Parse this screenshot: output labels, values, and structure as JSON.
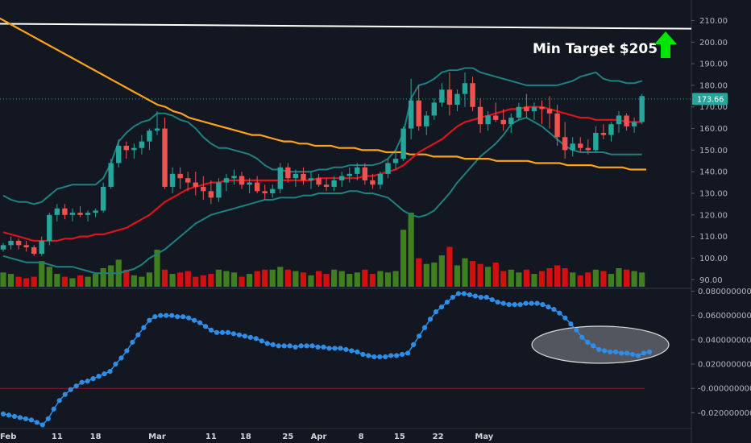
{
  "annotation": {
    "text": "Min Target $205",
    "arrow_color": "#00e600"
  },
  "colors": {
    "up": "#26a69a",
    "down": "#ef5350",
    "vol_up": "#3f7f1e",
    "vol_down": "#d40f0f",
    "bb": "#1f8080",
    "ma_red": "#e0121b",
    "ma_orange": "#ffa31a",
    "resistance": "#ffffff",
    "indicator": "#2e8de6",
    "zero_line": "#8b1d1d",
    "ellipse": "#d0d0d0"
  },
  "chart_data": {
    "type": "candlestick",
    "price_axis": {
      "range": [
        86,
        218
      ],
      "ticks": [
        "210.00",
        "200.00",
        "190.00",
        "180.00",
        "170.00",
        "160.00",
        "150.00",
        "140.00",
        "130.00",
        "120.00",
        "110.00",
        "100.00",
        "90.00"
      ],
      "current_price": "173.66"
    },
    "indicator_axis": {
      "range": [
        -0.033,
        0.081
      ],
      "ticks": [
        "0.0800000000",
        "0.0600000000",
        "0.0400000000",
        "0.0200000000",
        "-0.0000000000",
        "-0.0200000000"
      ]
    },
    "time_axis": {
      "labels": [
        {
          "label": "Feb",
          "i": -0.5
        },
        {
          "label": "11",
          "i": 7
        },
        {
          "label": "18",
          "i": 12
        },
        {
          "label": "Mar",
          "i": 20
        },
        {
          "label": "11",
          "i": 27
        },
        {
          "label": "18",
          "i": 31.5
        },
        {
          "label": "25",
          "i": 37
        },
        {
          "label": "Apr",
          "i": 41
        },
        {
          "label": "8",
          "i": 46.5
        },
        {
          "label": "15",
          "i": 51.5
        },
        {
          "label": "22",
          "i": 56.5
        },
        {
          "label": "May",
          "i": 62.5
        }
      ]
    },
    "resistance_line": {
      "from_price": 208.5,
      "to_price": 206.2
    },
    "candles": [
      [
        104,
        107,
        103,
        106
      ],
      [
        106,
        110,
        104,
        108
      ],
      [
        108,
        109,
        104,
        106
      ],
      [
        106,
        108,
        103,
        105
      ],
      [
        105,
        106,
        101,
        102
      ],
      [
        102,
        110,
        101,
        108
      ],
      [
        108,
        121,
        106,
        120
      ],
      [
        120,
        125,
        117,
        123
      ],
      [
        123,
        125,
        118,
        120
      ],
      [
        120,
        123,
        117,
        121
      ],
      [
        121,
        124,
        119,
        120
      ],
      [
        120,
        122,
        117,
        121
      ],
      [
        121,
        123,
        119,
        122
      ],
      [
        122,
        135,
        121,
        133
      ],
      [
        133,
        146,
        132,
        144
      ],
      [
        144,
        155,
        142,
        152
      ],
      [
        152,
        154,
        146,
        150
      ],
      [
        150,
        153,
        146,
        151
      ],
      [
        151,
        157,
        148,
        154
      ],
      [
        154,
        160,
        150,
        159
      ],
      [
        159,
        168,
        157,
        160
      ],
      [
        160,
        165,
        132,
        133
      ],
      [
        133,
        142,
        130,
        139
      ],
      [
        139,
        142,
        132,
        137
      ],
      [
        137,
        140,
        131,
        135
      ],
      [
        135,
        140,
        129,
        133
      ],
      [
        133,
        138,
        127,
        131
      ],
      [
        131,
        136,
        125,
        128
      ],
      [
        128,
        137,
        126,
        135
      ],
      [
        135,
        139,
        131,
        137
      ],
      [
        137,
        141,
        134,
        138
      ],
      [
        138,
        140,
        132,
        134
      ],
      [
        134,
        137,
        130,
        135
      ],
      [
        135,
        138,
        130,
        131
      ],
      [
        131,
        134,
        127,
        130
      ],
      [
        130,
        134,
        128,
        132
      ],
      [
        132,
        144,
        130,
        142
      ],
      [
        142,
        144,
        135,
        137
      ],
      [
        137,
        141,
        133,
        139
      ],
      [
        139,
        142,
        134,
        136
      ],
      [
        136,
        140,
        132,
        137
      ],
      [
        137,
        139,
        133,
        134
      ],
      [
        134,
        137,
        131,
        133
      ],
      [
        133,
        138,
        131,
        136
      ],
      [
        136,
        140,
        133,
        138
      ],
      [
        138,
        142,
        135,
        139
      ],
      [
        139,
        144,
        136,
        142
      ],
      [
        142,
        144,
        134,
        136
      ],
      [
        136,
        139,
        132,
        134
      ],
      [
        134,
        140,
        132,
        139
      ],
      [
        139,
        146,
        137,
        144
      ],
      [
        144,
        150,
        141,
        146
      ],
      [
        146,
        161,
        145,
        160
      ],
      [
        160,
        183,
        155,
        173
      ],
      [
        173,
        180,
        159,
        161
      ],
      [
        161,
        168,
        157,
        166
      ],
      [
        166,
        174,
        164,
        172
      ],
      [
        172,
        181,
        170,
        178
      ],
      [
        178,
        186,
        166,
        171
      ],
      [
        171,
        178,
        168,
        176
      ],
      [
        176,
        186,
        170,
        181
      ],
      [
        181,
        184,
        168,
        170
      ],
      [
        170,
        174,
        158,
        162
      ],
      [
        162,
        168,
        159,
        166
      ],
      [
        166,
        172,
        163,
        164
      ],
      [
        164,
        169,
        159,
        162
      ],
      [
        162,
        167,
        158,
        165
      ],
      [
        165,
        172,
        164,
        170
      ],
      [
        170,
        176,
        165,
        168
      ],
      [
        168,
        172,
        164,
        170
      ],
      [
        170,
        173,
        162,
        169
      ],
      [
        169,
        175,
        160,
        167
      ],
      [
        167,
        171,
        152,
        156
      ],
      [
        156,
        163,
        146,
        150
      ],
      [
        150,
        156,
        147,
        153
      ],
      [
        153,
        156,
        149,
        151
      ],
      [
        151,
        155,
        148,
        150
      ],
      [
        150,
        161,
        149,
        158
      ],
      [
        158,
        162,
        155,
        157
      ],
      [
        157,
        163,
        154,
        162
      ],
      [
        162,
        168,
        158,
        166
      ],
      [
        166,
        167,
        159,
        161
      ],
      [
        161,
        165,
        158,
        163
      ],
      [
        163,
        176,
        162,
        175
      ]
    ],
    "volume": [
      10,
      9,
      7,
      6,
      7,
      18,
      14,
      9,
      7,
      6,
      8,
      7,
      9,
      13,
      15,
      19,
      12,
      8,
      7,
      10,
      26,
      12,
      9,
      10,
      11,
      7,
      8,
      9,
      12,
      11,
      10,
      7,
      9,
      11,
      12,
      12,
      14,
      12,
      11,
      10,
      8,
      11,
      9,
      12,
      11,
      9,
      10,
      12,
      9,
      11,
      10,
      11,
      40,
      52,
      20,
      16,
      17,
      22,
      28,
      15,
      20,
      18,
      16,
      14,
      17,
      11,
      12,
      10,
      12,
      9,
      11,
      13,
      15,
      13,
      10,
      8,
      10,
      12,
      11,
      9,
      13,
      12,
      11,
      10
    ],
    "bollinger_upper": [
      129,
      127,
      126,
      126,
      125,
      126,
      129,
      132,
      133,
      134,
      134,
      134,
      134,
      137,
      144,
      154,
      158,
      161,
      163,
      164,
      167,
      167,
      166,
      164,
      163,
      160,
      156,
      153,
      151,
      151,
      150,
      149,
      148,
      146,
      143,
      141,
      141,
      140,
      140,
      140,
      140,
      141,
      141,
      142,
      142,
      143,
      143,
      143,
      143,
      144,
      146,
      150,
      158,
      174,
      180,
      181,
      183,
      186,
      187,
      187,
      188,
      188,
      186,
      185,
      184,
      183,
      182,
      181,
      180,
      180,
      180,
      180,
      180,
      181,
      182,
      184,
      185,
      186,
      183,
      182,
      182,
      181,
      181,
      182
    ],
    "bollinger_lower": [
      101,
      100,
      99,
      98,
      98,
      98,
      97,
      96,
      96,
      96,
      95,
      94,
      93,
      93,
      93,
      93,
      94,
      95,
      97,
      100,
      102,
      104,
      107,
      110,
      113,
      116,
      118,
      120,
      121,
      122,
      123,
      124,
      125,
      126,
      127,
      127,
      128,
      128,
      128,
      129,
      129,
      130,
      130,
      130,
      130,
      131,
      131,
      130,
      130,
      129,
      128,
      125,
      122,
      120,
      119,
      120,
      122,
      126,
      130,
      135,
      139,
      143,
      147,
      150,
      153,
      157,
      162,
      164,
      165,
      163,
      161,
      158,
      155,
      152,
      150,
      149,
      149,
      149,
      149,
      148,
      148,
      148,
      148,
      148
    ],
    "ma_red": [
      112,
      111,
      110,
      109,
      108,
      108,
      108,
      108,
      109,
      109,
      110,
      110,
      111,
      111,
      112,
      113,
      114,
      116,
      118,
      120,
      123,
      126,
      128,
      130,
      132,
      133,
      134,
      135,
      135,
      136,
      136,
      136,
      136,
      136,
      136,
      136,
      136,
      136,
      136,
      136,
      136,
      137,
      137,
      137,
      137,
      137,
      137,
      138,
      138,
      139,
      140,
      141,
      143,
      146,
      149,
      151,
      153,
      155,
      158,
      161,
      163,
      164,
      165,
      166,
      167,
      168,
      169,
      169,
      170,
      170,
      170,
      169,
      168,
      167,
      166,
      165,
      165,
      164,
      164,
      164,
      164,
      163,
      163,
      163
    ],
    "ma_orange": [
      213,
      211,
      209,
      207,
      205,
      203,
      201,
      199,
      197,
      195,
      193,
      191,
      189,
      187,
      185,
      183,
      181,
      179,
      177,
      175,
      173,
      171,
      170,
      168,
      167,
      165,
      164,
      163,
      162,
      161,
      160,
      159,
      158,
      157,
      157,
      156,
      155,
      154,
      154,
      153,
      153,
      152,
      152,
      152,
      151,
      151,
      151,
      150,
      150,
      150,
      149,
      149,
      149,
      148,
      148,
      148,
      147,
      147,
      147,
      147,
      146,
      146,
      146,
      146,
      145,
      145,
      145,
      145,
      145,
      144,
      144,
      144,
      144,
      143,
      143,
      143,
      143,
      142,
      142,
      142,
      142,
      141,
      141,
      141
    ],
    "indicator": [
      -0.021,
      -0.022,
      -0.023,
      -0.024,
      -0.025,
      -0.026,
      -0.028,
      -0.03,
      -0.025,
      -0.017,
      -0.01,
      -0.005,
      -0.001,
      0.002,
      0.005,
      0.006,
      0.008,
      0.01,
      0.012,
      0.014,
      0.02,
      0.025,
      0.031,
      0.038,
      0.044,
      0.05,
      0.056,
      0.059,
      0.06,
      0.06,
      0.06,
      0.059,
      0.059,
      0.058,
      0.056,
      0.054,
      0.051,
      0.048,
      0.046,
      0.046,
      0.046,
      0.045,
      0.044,
      0.043,
      0.042,
      0.041,
      0.039,
      0.037,
      0.036,
      0.035,
      0.035,
      0.035,
      0.034,
      0.035,
      0.035,
      0.035,
      0.034,
      0.034,
      0.033,
      0.033,
      0.033,
      0.032,
      0.031,
      0.03,
      0.028,
      0.027,
      0.026,
      0.026,
      0.026,
      0.027,
      0.027,
      0.028,
      0.029,
      0.036,
      0.043,
      0.05,
      0.057,
      0.063,
      0.067,
      0.071,
      0.075,
      0.078,
      0.078,
      0.077,
      0.076,
      0.075,
      0.075,
      0.073,
      0.071,
      0.07,
      0.069,
      0.069,
      0.069,
      0.07,
      0.07,
      0.07,
      0.069,
      0.067,
      0.065,
      0.062,
      0.058,
      0.053,
      0.048,
      0.042,
      0.038,
      0.035,
      0.032,
      0.031,
      0.03,
      0.03,
      0.029,
      0.029,
      0.028,
      0.027,
      0.029,
      0.03
    ]
  }
}
